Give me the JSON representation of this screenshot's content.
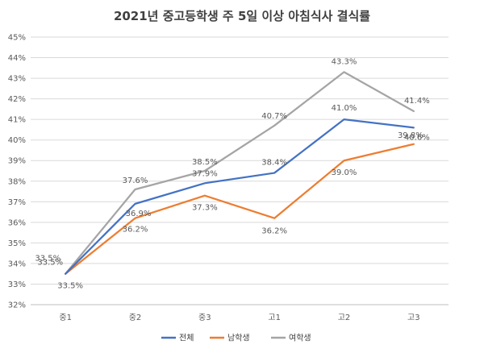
{
  "chart_data": {
    "type": "line",
    "title": "2021년 중고등학생 주 5일 이상 아침식사 결식률",
    "xlabel": "",
    "ylabel": "",
    "categories": [
      "중1",
      "중2",
      "중3",
      "고1",
      "고2",
      "고3"
    ],
    "ylim": [
      32,
      45
    ],
    "y_ticks": [
      "32%",
      "33%",
      "34%",
      "35%",
      "36%",
      "37%",
      "38%",
      "39%",
      "40%",
      "41%",
      "42%",
      "43%",
      "44%",
      "45%"
    ],
    "grid": true,
    "legend_position": "bottom",
    "series": [
      {
        "name": "전체",
        "color": "#4472c4",
        "values": [
          33.5,
          36.9,
          37.9,
          38.4,
          41.0,
          40.6
        ],
        "labels": [
          "33.5%",
          "36.9%",
          "37.9%",
          "38.4%",
          "41.0%",
          "40.6%"
        ]
      },
      {
        "name": "남학생",
        "color": "#ed7d31",
        "values": [
          33.5,
          36.2,
          37.3,
          36.2,
          39.0,
          39.8
        ],
        "labels": [
          "33.5%",
          "36.2%",
          "37.3%",
          "36.2%",
          "39.0%",
          "39.8%"
        ]
      },
      {
        "name": "여학생",
        "color": "#a5a5a5",
        "values": [
          33.5,
          37.6,
          38.5,
          40.7,
          43.3,
          41.4
        ],
        "labels": [
          "33.5%",
          "37.6%",
          "38.5%",
          "40.7%",
          "43.3%",
          "41.4%"
        ]
      }
    ]
  }
}
